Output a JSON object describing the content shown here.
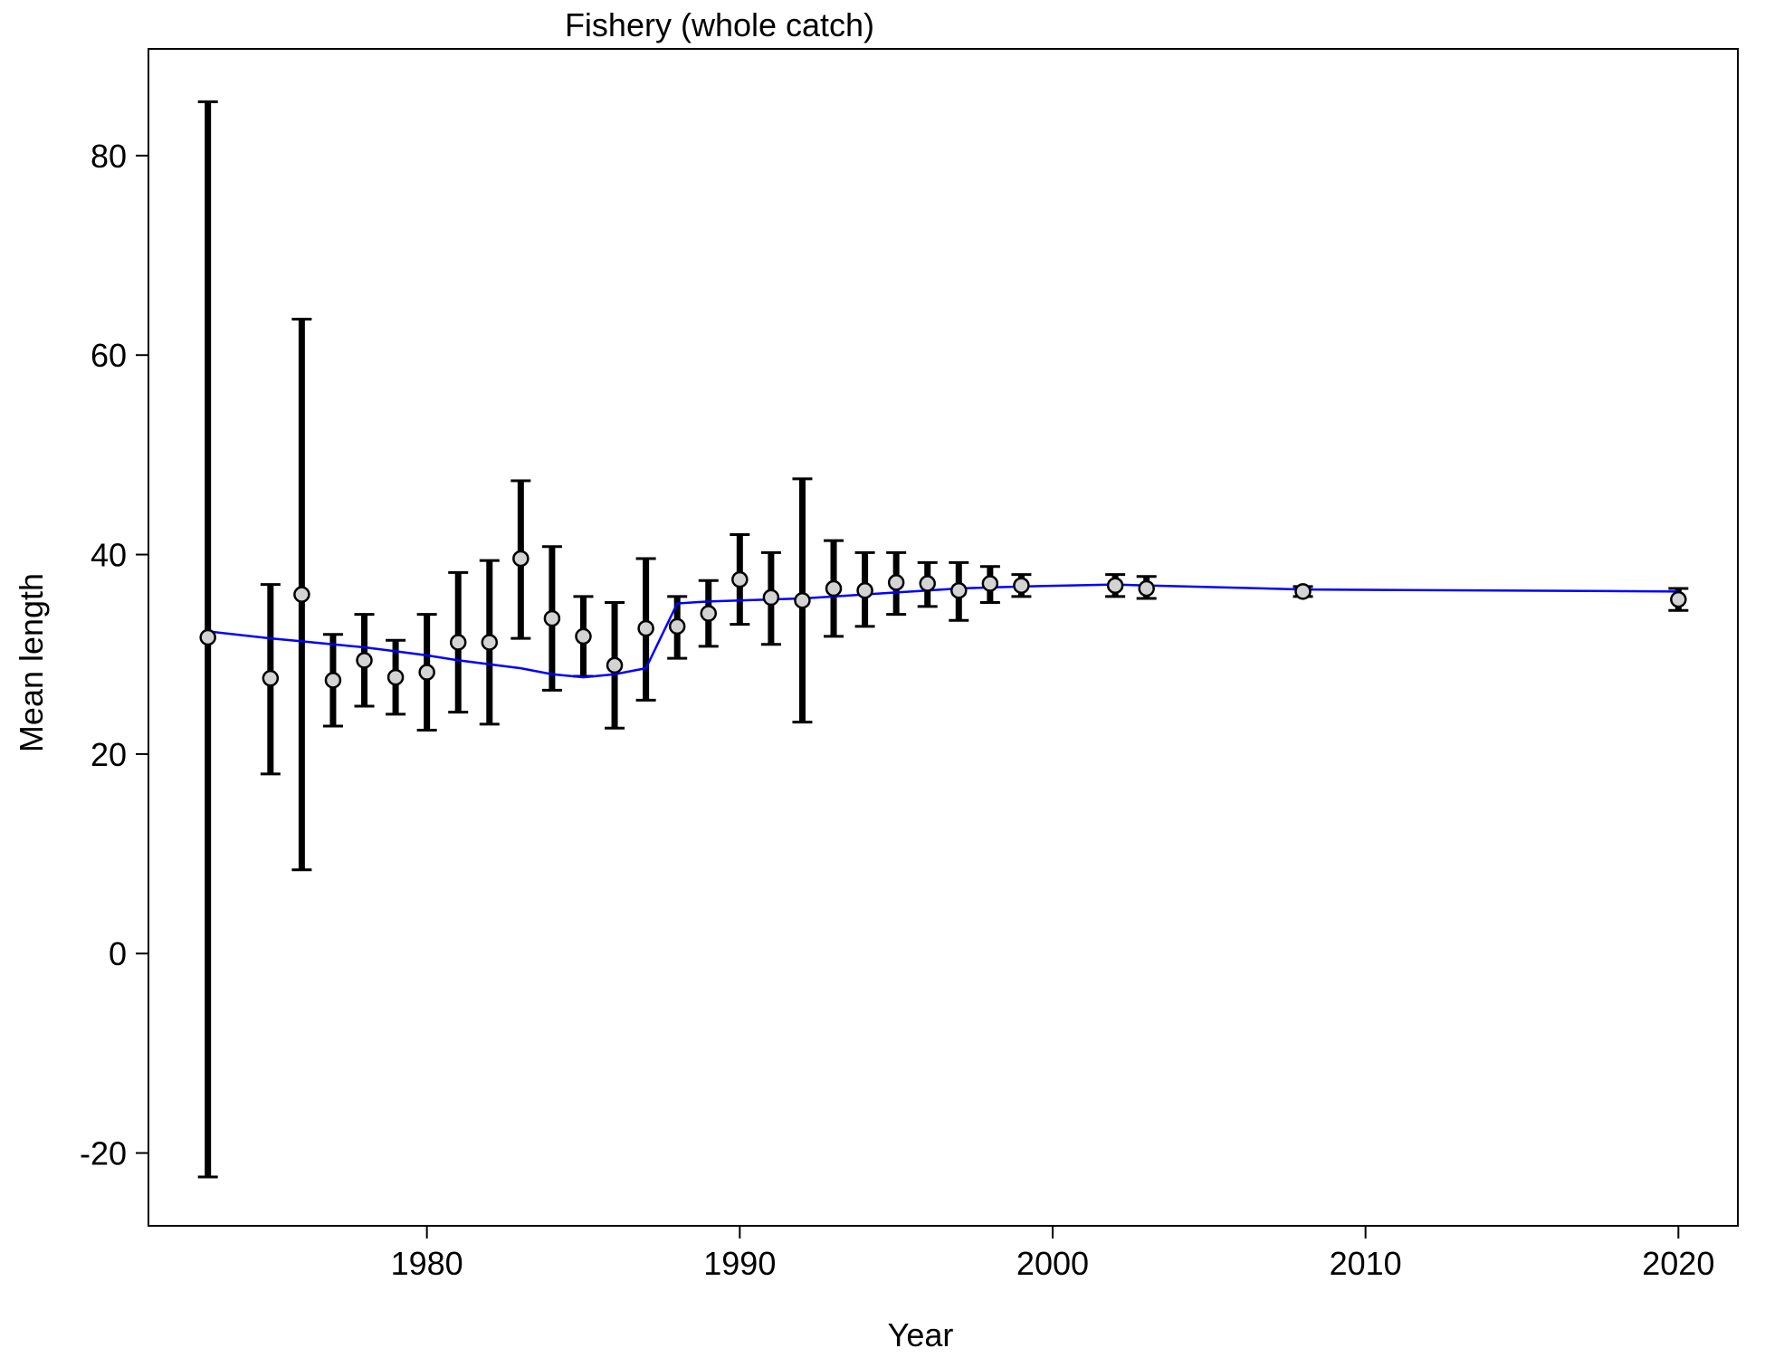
{
  "chart_data": {
    "type": "scatter",
    "title": "Fishery (whole catch)",
    "xlabel": "Year",
    "ylabel": "Mean length",
    "xlim": [
      1971.1,
      2021.9
    ],
    "ylim": [
      -27.3,
      90.7
    ],
    "xticks": [
      1980,
      1990,
      2000,
      2010,
      2020
    ],
    "yticks": [
      -20,
      0,
      20,
      40,
      60,
      80
    ],
    "grid": false,
    "colors": {
      "fit_line": "#0000ff",
      "points_fill": "#d3d3d3",
      "points_stroke": "#000000",
      "error_bars": "#000000"
    },
    "observed": {
      "x": [
        1973,
        1975,
        1976,
        1977,
        1978,
        1979,
        1980,
        1981,
        1982,
        1983,
        1984,
        1985,
        1986,
        1987,
        1988,
        1989,
        1990,
        1991,
        1992,
        1993,
        1994,
        1995,
        1996,
        1997,
        1998,
        1999,
        2002,
        2003,
        2008,
        2020
      ],
      "y": [
        31.7,
        27.6,
        36.0,
        27.4,
        29.4,
        27.7,
        28.2,
        31.2,
        31.2,
        39.6,
        33.6,
        31.8,
        28.9,
        32.6,
        32.8,
        34.1,
        37.5,
        35.7,
        35.4,
        36.6,
        36.4,
        37.2,
        37.1,
        36.4,
        37.1,
        36.9,
        36.9,
        36.6,
        36.3,
        35.5
      ],
      "lower": [
        -22.4,
        18.0,
        8.4,
        22.8,
        24.8,
        24.0,
        22.4,
        24.2,
        23.0,
        31.6,
        26.4,
        27.8,
        22.6,
        25.4,
        29.6,
        30.8,
        33.0,
        31.0,
        23.2,
        31.8,
        32.8,
        34.0,
        34.8,
        33.4,
        35.2,
        35.8,
        35.8,
        35.6,
        35.8,
        34.4
      ],
      "upper": [
        85.4,
        37.0,
        63.6,
        32.0,
        34.0,
        31.4,
        34.0,
        38.2,
        39.4,
        47.4,
        40.8,
        35.8,
        35.2,
        39.6,
        35.8,
        37.4,
        42.0,
        40.2,
        47.6,
        41.4,
        40.2,
        40.2,
        39.2,
        39.2,
        38.8,
        38.0,
        38.0,
        37.8,
        36.8,
        36.6
      ]
    },
    "expected": {
      "x": [
        1973,
        1975,
        1976,
        1977,
        1978,
        1979,
        1980,
        1981,
        1982,
        1983,
        1984,
        1985,
        1986,
        1987,
        1988,
        1989,
        1990,
        1991,
        1992,
        1993,
        1994,
        1995,
        1996,
        1997,
        1998,
        1999,
        2002,
        2003,
        2008,
        2020
      ],
      "y": [
        32.3,
        31.6,
        31.3,
        31.0,
        30.7,
        30.3,
        29.9,
        29.4,
        29.0,
        28.6,
        28.0,
        27.7,
        28.0,
        28.6,
        35.1,
        35.3,
        35.4,
        35.5,
        35.6,
        35.8,
        36.0,
        36.2,
        36.4,
        36.6,
        36.7,
        36.8,
        37.0,
        36.9,
        36.5,
        36.3
      ]
    }
  }
}
